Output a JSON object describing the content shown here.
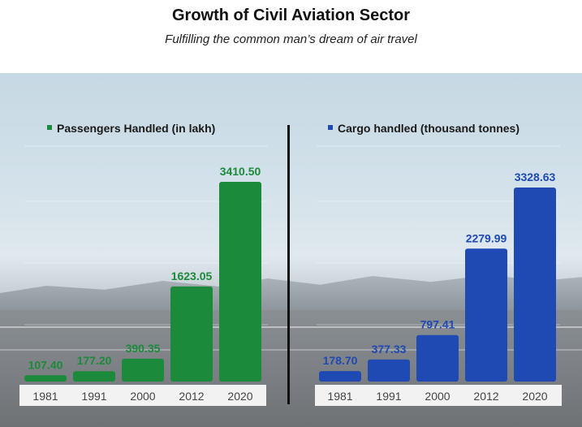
{
  "header": {
    "title": "Growth of Civil Aviation Sector",
    "subtitle": "Fulfilling the common man’s dream of air travel"
  },
  "colors": {
    "passengers": "#1b8a3a",
    "passengers_label": "#1b8a3a",
    "cargo": "#1f49b3",
    "cargo_label": "#1f49b3",
    "axis_text": "#444444"
  },
  "chart_data": [
    {
      "type": "bar",
      "categories": [
        "1981",
        "1991",
        "2000",
        "2012",
        "2020"
      ],
      "series": [
        {
          "name": "Passengers Handled (in lakh)",
          "values": [
            107.4,
            177.2,
            390.35,
            1623.05,
            3410.5
          ]
        }
      ],
      "data_labels": [
        "107.40",
        "177.20",
        "390.35",
        "1623.05",
        "3410.50"
      ],
      "legend": "top-left",
      "grid": true
    },
    {
      "type": "bar",
      "categories": [
        "1981",
        "1991",
        "2000",
        "2012",
        "2020"
      ],
      "series": [
        {
          "name": "Cargo handled (thousand tonnes)",
          "values": [
            178.7,
            377.33,
            797.41,
            2279.99,
            3328.63
          ]
        }
      ],
      "data_labels": [
        "178.70",
        "377.33",
        "797.41",
        "2279.99",
        "3328.63"
      ],
      "legend": "top-left",
      "grid": true
    }
  ]
}
